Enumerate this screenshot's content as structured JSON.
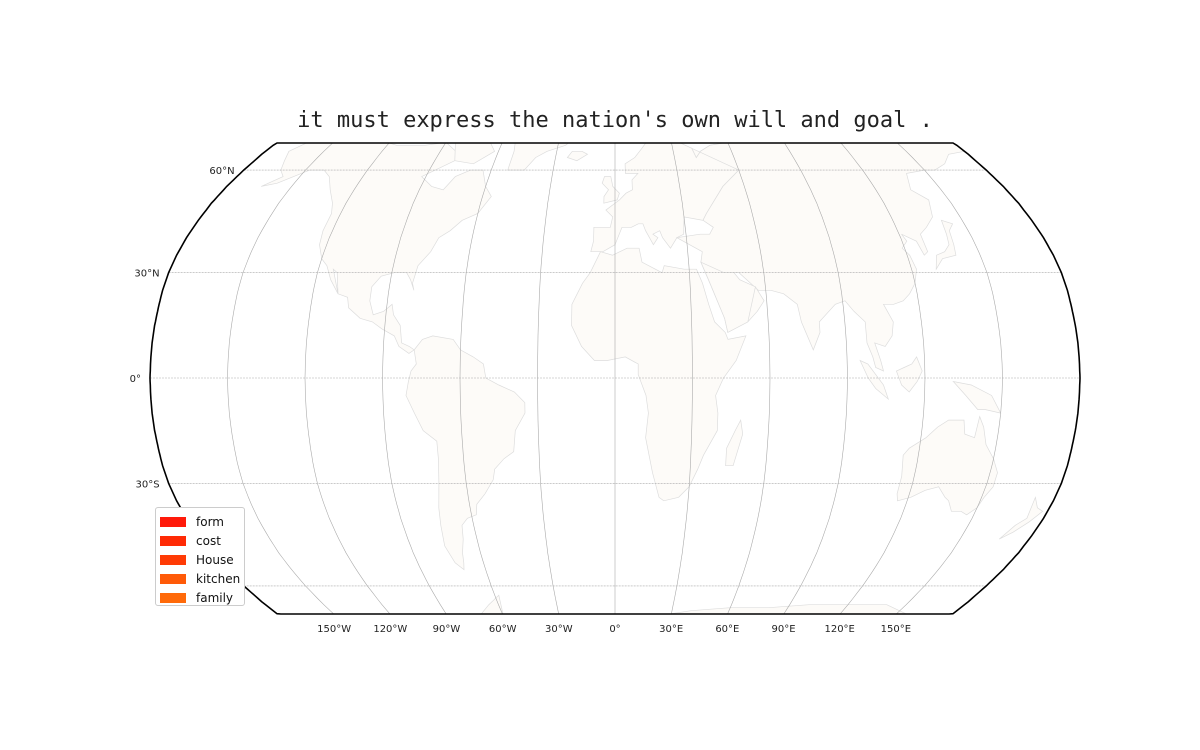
{
  "map": {
    "title": "it must express the nation's own will and goal .",
    "projection": "robinson",
    "latitude_labels": [
      "60°N",
      "30°N",
      "0°",
      "30°S"
    ],
    "longitude_labels": [
      "150°W",
      "120°W",
      "90°W",
      "60°W",
      "30°W",
      "0°",
      "30°E",
      "60°E",
      "90°E",
      "120°E",
      "150°E"
    ],
    "legend": {
      "placement": "lower-left",
      "items": [
        {
          "label": "form",
          "color": "#ff1a0a"
        },
        {
          "label": "cost",
          "color": "#ff2a05"
        },
        {
          "label": "House",
          "color": "#ff3b05"
        },
        {
          "label": "kitchen",
          "color": "#ff5a08"
        },
        {
          "label": "family",
          "color": "#ff6a0a"
        }
      ]
    },
    "colors": {
      "outline": "#000000",
      "graticule": "#aaaaaa",
      "land": "#fdfbf8",
      "coastline": "#dddddd"
    }
  }
}
